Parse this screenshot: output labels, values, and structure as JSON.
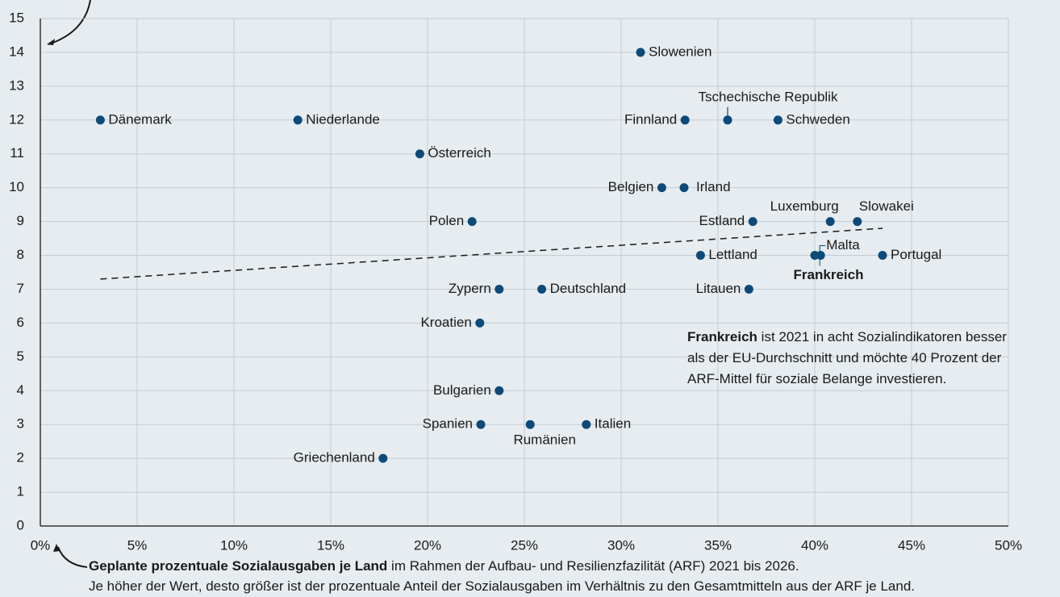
{
  "chart_data": {
    "type": "scatter",
    "categories": [
      "Dänemark",
      "Niederlande",
      "Österreich",
      "Slowenien",
      "Finnland",
      "Tschechische Republik",
      "Schweden",
      "Belgien",
      "Irland",
      "Polen",
      "Estland",
      "Luxemburg",
      "Slowakei",
      "Lettland",
      "Frankreich",
      "Malta",
      "Portugal",
      "Zypern",
      "Deutschland",
      "Litauen",
      "Kroatien",
      "Bulgarien",
      "Spanien",
      "Rumänien",
      "Italien",
      "Griechenland"
    ],
    "x": [
      3.1,
      13.3,
      19.6,
      31.0,
      33.3,
      35.5,
      38.1,
      32.1,
      33.25,
      22.3,
      36.8,
      40.8,
      42.2,
      34.1,
      40.0,
      40.3,
      43.5,
      23.7,
      25.9,
      36.6,
      22.7,
      23.7,
      22.75,
      25.3,
      28.2,
      17.7
    ],
    "values": [
      12,
      12,
      11,
      14,
      12,
      12,
      12,
      10,
      10,
      9,
      9,
      9,
      9,
      8,
      8,
      8,
      8,
      7,
      7,
      7,
      6,
      4,
      3,
      3,
      3,
      2
    ],
    "color": "#0c4a7a",
    "trend_line": {
      "x": [
        3.1,
        43.5
      ],
      "values": [
        7.3,
        8.8
      ]
    },
    "xlim": [
      0,
      50
    ],
    "xticks": [
      {
        "value": 0,
        "label": "0%"
      },
      {
        "value": 5,
        "label": "5%"
      },
      {
        "value": 10,
        "label": "10%"
      },
      {
        "value": 15,
        "label": "15%"
      },
      {
        "value": 20,
        "label": "20%"
      },
      {
        "value": 25,
        "label": "25%"
      },
      {
        "value": 30,
        "label": "30%"
      },
      {
        "value": 35,
        "label": "35%"
      },
      {
        "value": 40,
        "label": "40%"
      },
      {
        "value": 45,
        "label": "45%"
      },
      {
        "value": 50,
        "label": "50%"
      }
    ],
    "ylim": [
      0,
      15
    ],
    "yticks": [
      0,
      1,
      2,
      3,
      4,
      5,
      6,
      7,
      8,
      9,
      10,
      11,
      12,
      13,
      14,
      15
    ],
    "grid": true,
    "annotation": {
      "bold": "Frankreich",
      "text": " ist 2021 in acht Sozialindikatoren besser als der EU-Durchschnitt und möchte 40 Prozent der ARF-Mittel für soziale Belange investieren."
    },
    "x_label": {
      "bold": "Geplante prozentuale Sozialausgaben je Land",
      "text": " im Rahmen der Aufbau- und Resilienzfazilität (ARF) 2021 bis 2026.",
      "line2": "Je höher der Wert, desto größer ist der prozentuale Anteil der Sozialausgaben im Verhältnis zu den Gesamtmitteln aus der ARF je Land."
    }
  }
}
